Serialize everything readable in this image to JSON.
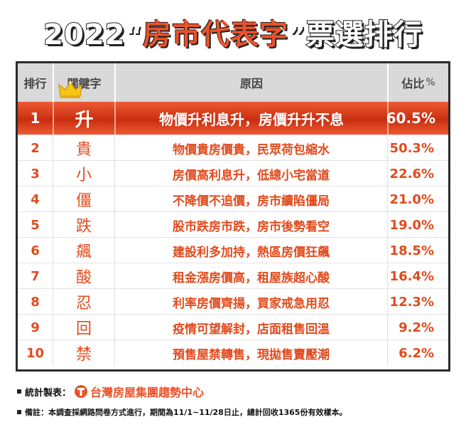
{
  "title": {
    "year": "2022",
    "open_quote": "“",
    "main": "房市代表字",
    "close_quote": "”",
    "suffix": "票選排行"
  },
  "table": {
    "headers": {
      "rank": "排行",
      "keyword": "關鍵字",
      "reason": "原因",
      "share": "佔比",
      "share_unit": "%"
    },
    "rows": [
      {
        "rank": "1",
        "word": "升",
        "reason": "物價升利息升，房價升升不息",
        "share": "60.5%"
      },
      {
        "rank": "2",
        "word": "貴",
        "reason": "物價貴房價貴，民眾荷包縮水",
        "share": "50.3%"
      },
      {
        "rank": "3",
        "word": "小",
        "reason": "房價高利息升，低總小宅當道",
        "share": "22.6%"
      },
      {
        "rank": "4",
        "word": "僵",
        "reason": "不降價不追價，房市續陷僵局",
        "share": "21.0%"
      },
      {
        "rank": "5",
        "word": "跌",
        "reason": "股市跌房市跌，房市後勢看空",
        "share": "19.0%"
      },
      {
        "rank": "6",
        "word": "飆",
        "reason": "建設利多加持，熱區房價狂飆",
        "share": "18.5%"
      },
      {
        "rank": "7",
        "word": "酸",
        "reason": "租金漲房價高，租屋族超心酸",
        "share": "16.4%"
      },
      {
        "rank": "8",
        "word": "忍",
        "reason": "利率房價齊揚，買家戒急用忍",
        "share": "12.3%"
      },
      {
        "rank": "9",
        "word": "回",
        "reason": "疫情可望解封，店面租售回溫",
        "share": "9.2%"
      },
      {
        "rank": "10",
        "word": "禁",
        "reason": "預售屋禁轉售，現拋售賣壓潮",
        "share": "6.2%"
      }
    ]
  },
  "footer": {
    "source_label": "統計製表：",
    "source_name": "台灣房屋集團趨勢中心",
    "logo_icon": "taiwan-realty-logo-icon",
    "note": "備註：本調查採網路問卷方式進行，期間為11/1~11/28日止，總計回收1365份有效樣本。"
  },
  "colors": {
    "accent": "#e9532b",
    "highlight_row": "#d93a16",
    "header_bg": "#d9d9d9",
    "crown": "#f5c518"
  }
}
